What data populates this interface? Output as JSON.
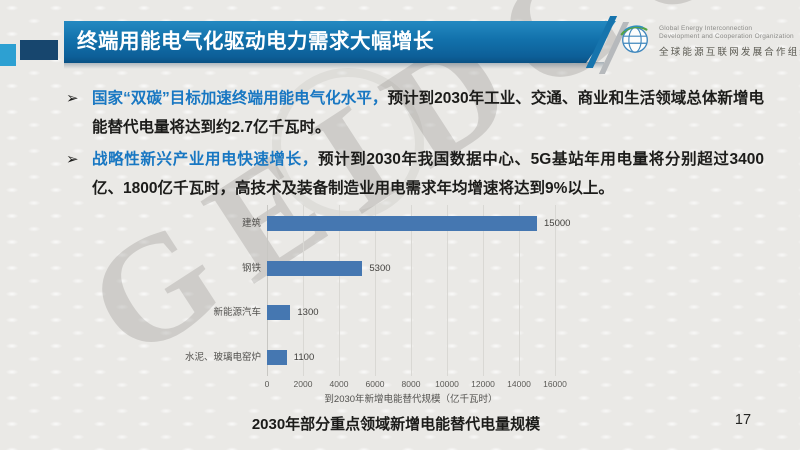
{
  "header": {
    "title": "终端用能电气化驱动电力需求大幅增长"
  },
  "logo": {
    "en_line1": "Global Energy Interconnection",
    "en_line2": "Development and Cooperation Organization",
    "zh": "全球能源互联网发展合作组织"
  },
  "bullets": [
    {
      "marker": "➢",
      "lead": "国家“双碳”目标加速终端用能电气化水平，",
      "body": "预计到2030年工业、交通、商业和生活领域总体新增电能替代电量将达到约2.7亿千瓦时。"
    },
    {
      "marker": "➢",
      "lead": "战略性新兴产业用电快速增长，",
      "body": "预计到2030年我国数据中心、5G基站年用电量将分别超过3400亿、1800亿千瓦时，高技术及装备制造业用电需求年均增速将达到9%以上。"
    }
  ],
  "watermark": {
    "text": "GEIDCO"
  },
  "footer": {
    "caption": "2030年部分重点领域新增电能替代电量规模",
    "page_number": "17"
  },
  "colors": {
    "title_bar_blue": "#1271ab",
    "accent_light_blue": "#2da0d2",
    "accent_navy": "#17466e",
    "lead_text_blue": "#1877c2",
    "bar_blue": "#4577b1",
    "background": "#eae9e6"
  },
  "chart_data": {
    "type": "bar",
    "orientation": "horizontal",
    "title": "",
    "categories": [
      "建筑",
      "钢铁",
      "新能源汽车",
      "水泥、玻璃电窑炉"
    ],
    "values": [
      15000,
      5300,
      1300,
      1100
    ],
    "xlabel": "到2030年新增电能替代规模（亿千瓦时）",
    "ylabel": "",
    "xlim": [
      0,
      16000
    ],
    "xticks": [
      0,
      2000,
      4000,
      6000,
      8000,
      10000,
      12000,
      14000,
      16000
    ],
    "grid": true,
    "legend": false,
    "bar_color": "#4577b1"
  }
}
